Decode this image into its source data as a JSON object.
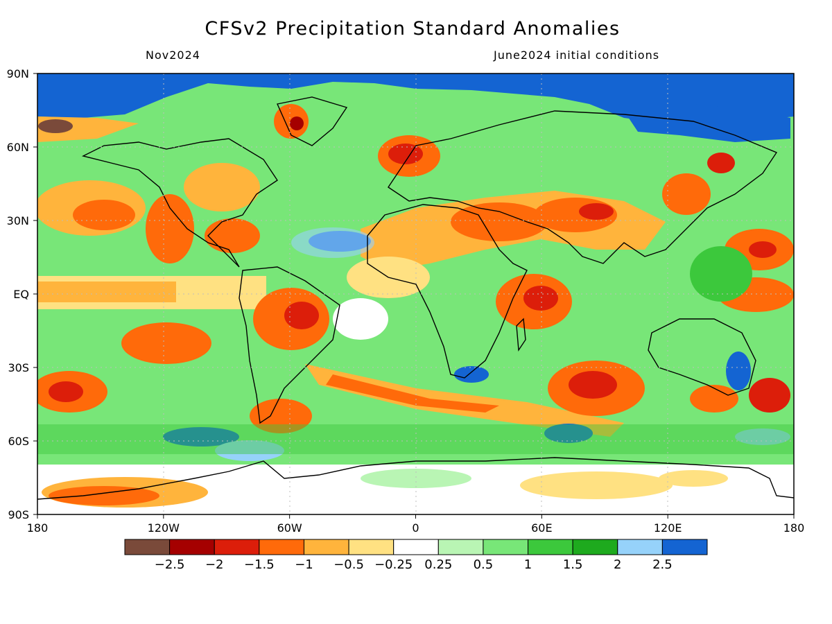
{
  "title": "CFSv2 Precipitation Standard Anomalies",
  "valid_month": "Nov2024",
  "initial_conditions": "June2024 initial conditions",
  "lat_ticks": [
    "90N",
    "60N",
    "30N",
    "EQ",
    "30S",
    "60S",
    "90S"
  ],
  "lon_ticks": [
    "180",
    "120W",
    "60W",
    "0",
    "60E",
    "120E",
    "180"
  ],
  "colorbar": {
    "colors": [
      "#7a4a3a",
      "#a50000",
      "#dc1e0a",
      "#ff6a0a",
      "#ffb43c",
      "#ffe182",
      "#ffffff",
      "#b9f5b4",
      "#78e678",
      "#3cc83c",
      "#1eaa1e",
      "#96d2fa",
      "#1464d2"
    ],
    "labels": [
      "−2.5",
      "−2",
      "−1.5",
      "−1",
      "−0.5",
      "−0.25",
      "0.25",
      "0.5",
      "1",
      "1.5",
      "2",
      "2.5"
    ]
  }
}
